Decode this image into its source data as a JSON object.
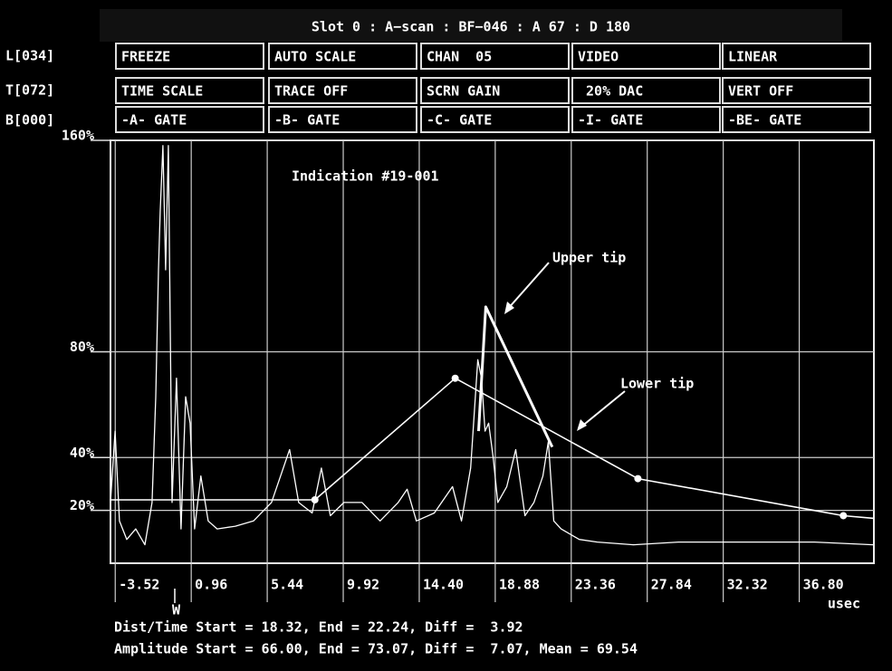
{
  "header": {
    "title": "Slot 0 : A−scan : BF−046 : A 67 : D 180"
  },
  "side_labels": [
    "L[034]",
    "T[072]",
    "B[000]"
  ],
  "menu": [
    [
      "FREEZE",
      "AUTO SCALE",
      "CHAN  05",
      "VIDEO",
      "LINEAR"
    ],
    [
      "TIME SCALE",
      "TRACE OFF",
      "SCRN GAIN",
      " 20% DAC",
      "VERT OFF"
    ],
    [
      "-A- GATE",
      "-B- GATE",
      "-C- GATE",
      "-I- GATE",
      "-BE- GATE"
    ]
  ],
  "chart_data": {
    "type": "line",
    "xlim": [
      -3.8,
      41.2
    ],
    "ylim": [
      0,
      160
    ],
    "xticks": [
      -3.52,
      0.96,
      5.44,
      9.92,
      {
        "value": 14.4,
        "label": "14.40"
      },
      18.88,
      23.36,
      27.84,
      32.32,
      {
        "value": 36.8,
        "label": "36.80"
      }
    ],
    "yticks": [
      {
        "value": 20,
        "label": "20%"
      },
      {
        "value": 40,
        "label": "40%"
      },
      {
        "value": 80,
        "label": "80%"
      },
      {
        "value": 160,
        "label": "160%"
      }
    ],
    "xlabel": "usec",
    "grid": true,
    "annotations": [
      "Indication #19-001",
      "Upper tip",
      "Lower tip",
      "W"
    ],
    "series": [
      {
        "color": "#ffffff",
        "line_width": 1.3,
        "markers": false,
        "x": [
          -3.8,
          -3.53,
          -3.27,
          -2.84,
          -2.31,
          -1.77,
          -1.35,
          -1.13,
          -0.97,
          -0.87,
          -0.71,
          -0.55,
          -0.39,
          -0.17,
          0.09,
          0.36,
          0.63,
          0.89,
          1.16,
          1.53,
          1.96,
          2.49,
          3.56,
          4.63,
          5.69,
          6.76,
          7.29,
          8.09,
          8.63,
          9.16,
          9.96,
          11.03,
          12.09,
          13.16,
          13.69,
          14.23,
          15.29,
          16.36,
          16.89,
          17.43,
          17.85,
          18.07,
          18.28,
          18.49,
          18.76,
          19.03,
          19.56,
          20.09,
          20.63,
          21.16,
          21.69,
          22.01,
          22.33,
          22.76,
          23.83,
          24.89,
          27.03,
          29.69,
          32.36,
          35.03,
          37.69,
          41.16
        ],
        "values": [
          23,
          50,
          16,
          9,
          13,
          7,
          23,
          63,
          111,
          133,
          158,
          111,
          158,
          23,
          70,
          13,
          63,
          53,
          13,
          33,
          16,
          13,
          14,
          16,
          23,
          43,
          23,
          19,
          36,
          18,
          23,
          23,
          16,
          23,
          28,
          16,
          19,
          29,
          16,
          36,
          77,
          70,
          50,
          53,
          40,
          23,
          29,
          43,
          18,
          23,
          33,
          46,
          16,
          13,
          9,
          8,
          7,
          8,
          8,
          8,
          8,
          7
        ]
      },
      {
        "color": "#ffffff",
        "line_width": 3,
        "markers": false,
        "x": [
          17.9,
          18.32,
          22.24
        ],
        "values": [
          50,
          97,
          44
        ]
      },
      {
        "color": "#ffffff",
        "line_width": 1.6,
        "markers": true,
        "x": [
          -3.8,
          8.25,
          16.52,
          27.29,
          39.4,
          41.2
        ],
        "values": [
          24,
          24,
          70,
          32,
          18,
          17
        ]
      }
    ]
  },
  "footer": [
    "Dist/Time Start = 18.32, End = 22.24, Diff =  3.92",
    "Amplitude Start = 66.00, End = 73.07, Diff =  7.07, Mean = 69.54"
  ]
}
